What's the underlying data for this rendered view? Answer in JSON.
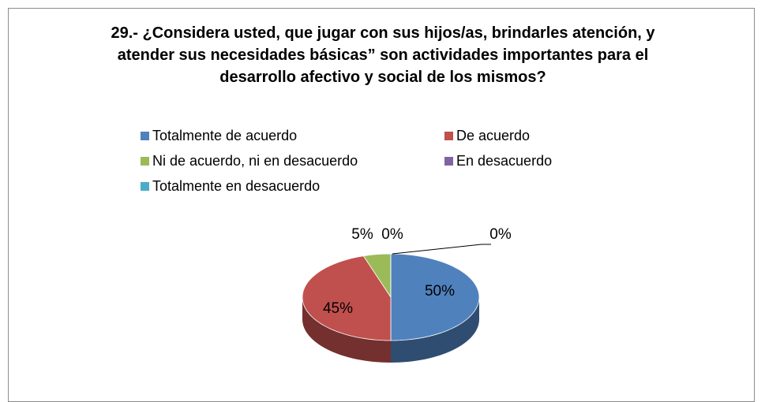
{
  "chart_data": {
    "type": "pie",
    "title": "29.- ¿Considera usted, que jugar con sus hijos/as, brindarles atención, y atender sus necesidades básicas”  son actividades importantes para el desarrollo afectivo y social de los mismos?",
    "categories": [
      "Totalmente de acuerdo",
      "De acuerdo",
      "Ni de acuerdo, ni en desacuerdo",
      "En desacuerdo",
      "Totalmente en desacuerdo"
    ],
    "values": [
      50,
      45,
      5,
      0,
      0
    ],
    "value_labels": [
      "50%",
      "45%",
      "5%",
      "0%",
      "0%"
    ],
    "colors": [
      "#4f81bd",
      "#c0504d",
      "#9bbb59",
      "#8064a2",
      "#4bacc6"
    ],
    "legend": "top"
  }
}
